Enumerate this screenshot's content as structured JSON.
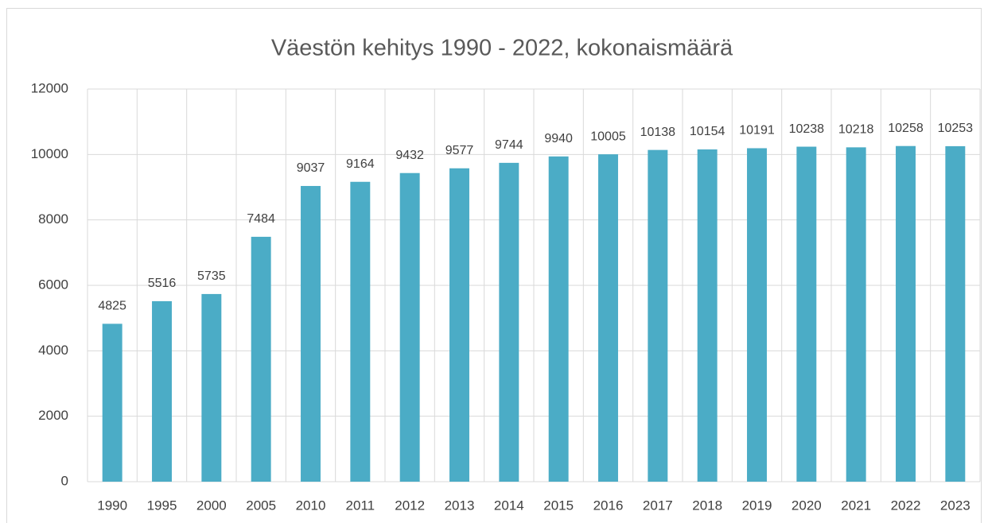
{
  "chart_data": {
    "type": "bar",
    "title": "Väestön kehitys 1990 - 2022, kokonaismäärä",
    "categories": [
      "1990",
      "1995",
      "2000",
      "2005",
      "2010",
      "2011",
      "2012",
      "2013",
      "2014",
      "2015",
      "2016",
      "2017",
      "2018",
      "2019",
      "2020",
      "2021",
      "2022",
      "2023"
    ],
    "values": [
      4825,
      5516,
      5735,
      7484,
      9037,
      9164,
      9432,
      9577,
      9744,
      9940,
      10005,
      10138,
      10154,
      10191,
      10238,
      10218,
      10258,
      10253
    ],
    "color": "#4bacc6",
    "ylim": [
      0,
      12000
    ],
    "yticks": [
      0,
      2000,
      4000,
      6000,
      8000,
      10000,
      12000
    ],
    "grid": true
  }
}
